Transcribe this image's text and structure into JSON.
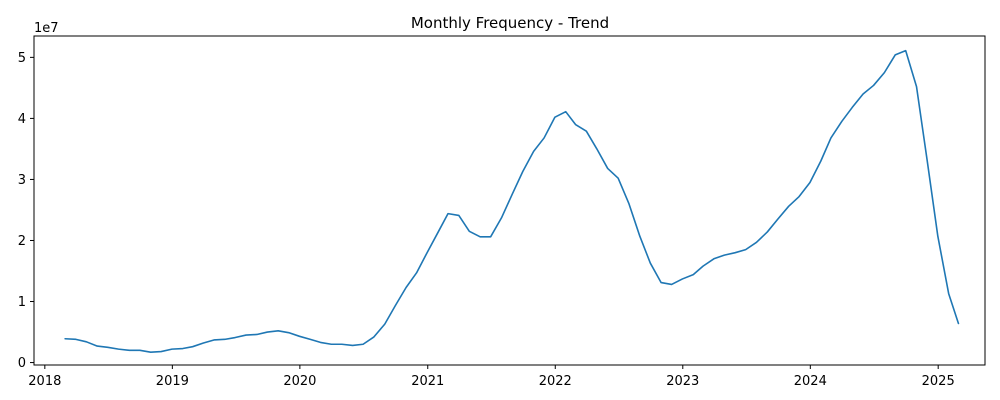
{
  "chart_data": {
    "type": "line",
    "title": "Monthly Frequency - Trend",
    "xlabel": "",
    "ylabel": "",
    "y_offset_text": "1e7",
    "xlim": [
      "2017-12-01",
      "2025-05-15"
    ],
    "ylim": [
      -400000,
      53500000
    ],
    "x_ticks": [
      "2018",
      "2019",
      "2020",
      "2021",
      "2022",
      "2023",
      "2024",
      "2025"
    ],
    "y_ticks": [
      0,
      10000000,
      20000000,
      30000000,
      40000000,
      50000000
    ],
    "y_tick_labels": [
      "0",
      "1",
      "2",
      "3",
      "4",
      "5"
    ],
    "grid": false,
    "color": "#1f77b4",
    "series": [
      {
        "x": [
          "2018-02-28",
          "2018-03-31",
          "2018-04-30",
          "2018-05-31",
          "2018-06-30",
          "2018-07-31",
          "2018-08-31",
          "2018-09-30",
          "2018-10-31",
          "2018-11-30",
          "2018-12-31",
          "2019-01-31",
          "2019-02-28",
          "2019-03-31",
          "2019-04-30",
          "2019-05-31",
          "2019-06-30",
          "2019-07-31",
          "2019-08-31",
          "2019-09-30",
          "2019-10-31",
          "2019-11-30",
          "2019-12-31",
          "2020-01-31",
          "2020-02-29",
          "2020-03-31",
          "2020-04-30",
          "2020-05-31",
          "2020-06-30",
          "2020-07-31",
          "2020-08-31",
          "2020-09-30",
          "2020-10-31",
          "2020-11-30",
          "2020-12-31",
          "2021-01-31",
          "2021-02-28",
          "2021-03-31",
          "2021-04-30",
          "2021-05-31",
          "2021-06-30",
          "2021-07-31",
          "2021-08-31",
          "2021-09-30",
          "2021-10-31",
          "2021-11-30",
          "2021-12-31",
          "2022-01-31",
          "2022-02-28",
          "2022-03-31",
          "2022-04-30",
          "2022-05-31",
          "2022-06-30",
          "2022-07-31",
          "2022-08-31",
          "2022-09-30",
          "2022-10-31",
          "2022-11-30",
          "2022-12-31",
          "2023-01-31",
          "2023-02-28",
          "2023-03-31",
          "2023-04-30",
          "2023-05-31",
          "2023-06-30",
          "2023-07-31",
          "2023-08-31",
          "2023-09-30",
          "2023-10-31",
          "2023-11-30",
          "2023-12-31",
          "2024-01-31",
          "2024-02-29",
          "2024-03-31",
          "2024-04-30",
          "2024-05-31",
          "2024-06-30",
          "2024-07-31",
          "2024-08-31",
          "2024-09-30",
          "2024-10-31",
          "2024-11-30",
          "2024-12-31",
          "2025-01-31",
          "2025-02-28"
        ],
        "values": [
          3900000,
          3800000,
          3400000,
          2700000,
          2500000,
          2200000,
          2000000,
          2000000,
          1700000,
          1800000,
          2200000,
          2300000,
          2600000,
          3200000,
          3700000,
          3800000,
          4100000,
          4500000,
          4600000,
          5000000,
          5200000,
          4900000,
          4300000,
          3800000,
          3300000,
          3000000,
          3000000,
          2800000,
          3000000,
          4200000,
          6300000,
          9300000,
          12300000,
          14700000,
          18100000,
          21400000,
          24400000,
          24100000,
          21500000,
          20600000,
          20600000,
          23700000,
          27600000,
          31300000,
          34600000,
          36800000,
          40200000,
          41100000,
          39000000,
          37900000,
          35000000,
          31800000,
          30200000,
          26000000,
          20700000,
          16300000,
          13100000,
          12800000,
          13700000,
          14400000,
          15800000,
          17000000,
          17600000,
          18000000,
          18500000,
          19700000,
          21400000,
          23500000,
          25600000,
          27200000,
          29500000,
          33000000,
          36800000,
          39500000,
          41800000,
          44000000,
          45400000,
          47500000,
          50400000,
          51100000,
          45200000,
          33300000,
          20700000,
          11300000,
          6400000
        ]
      }
    ]
  }
}
